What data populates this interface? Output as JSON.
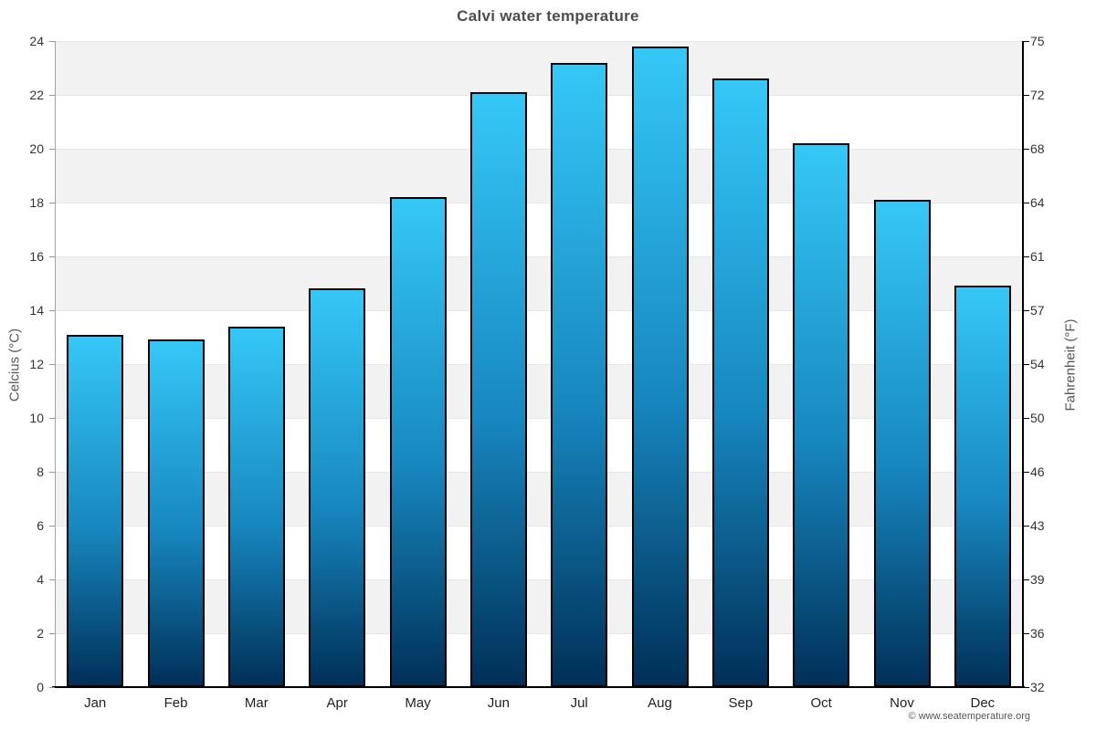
{
  "page": {
    "credit": "© www.seatemperature.org"
  },
  "chart_data": {
    "type": "bar",
    "title": "Calvi water temperature",
    "categories": [
      "Jan",
      "Feb",
      "Mar",
      "Apr",
      "May",
      "Jun",
      "Jul",
      "Aug",
      "Sep",
      "Oct",
      "Nov",
      "Dec"
    ],
    "values": [
      13.1,
      12.9,
      13.4,
      14.8,
      18.2,
      22.1,
      23.2,
      23.8,
      22.6,
      20.2,
      18.1,
      14.9
    ],
    "unit": "°C",
    "ylabel_left": "Celcius (°C)",
    "ylabel_right": "Fahrenheit (°F)",
    "ylim": [
      0,
      24
    ],
    "yticks_left": [
      0,
      2,
      4,
      6,
      8,
      10,
      12,
      14,
      16,
      18,
      20,
      22,
      24
    ],
    "yticks_right_labels": [
      "32",
      "36",
      "39",
      "43",
      "46",
      "50",
      "54",
      "57",
      "61",
      "64",
      "68",
      "72",
      "75"
    ],
    "grid": "alternating horizontal bands every 2°C, gray band from 24-22 downward",
    "legend": "none",
    "colors": {
      "bar_gradient_top": "#35c8f7",
      "bar_gradient_bottom": "#003057",
      "bar_border": "#000000",
      "band_fill": "#f2f2f2",
      "gridline": "#e6e6e6",
      "title_text": "#4d4d4d",
      "tick_text": "#333333",
      "axis_title_text": "#555555",
      "credit_text": "#555555"
    }
  }
}
